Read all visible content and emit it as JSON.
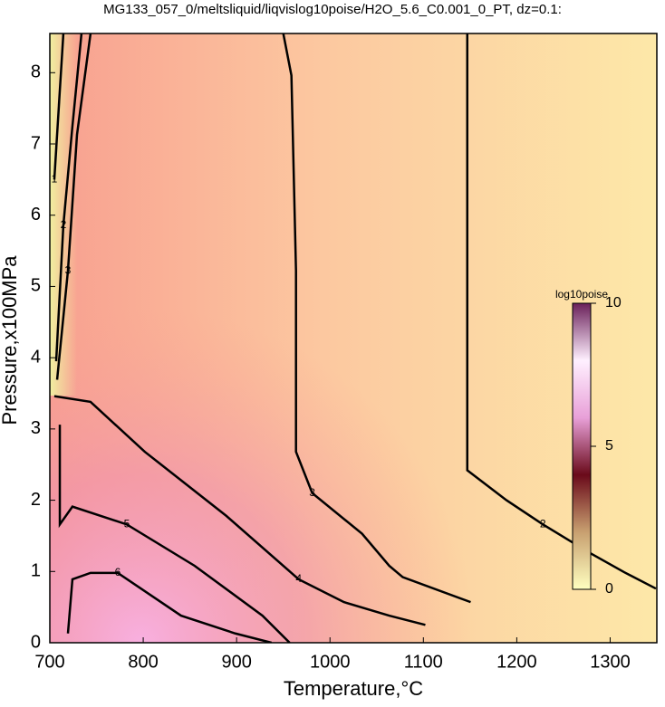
{
  "chart_data": {
    "type": "contour",
    "title": "MG133_057_0/meltsliquid/liqvislog10poise/H2O_5.6_C0.001_0_PT, dz=0.1:",
    "xlabel": "Temperature,°C",
    "ylabel": "Pressure,x100MPa",
    "xlim": [
      700,
      1350
    ],
    "xticks": [
      700,
      800,
      900,
      1000,
      1100,
      1200,
      1300
    ],
    "ylim": [
      0,
      8.55
    ],
    "yticks": [
      0,
      1,
      2,
      3,
      4,
      5,
      6,
      7,
      8
    ],
    "line_color": "#000000",
    "contours": [
      {
        "level": 1,
        "x": [
          714.5,
          704.8
        ],
        "y": [
          8.55,
          6.5
        ]
      },
      {
        "level": 2,
        "x": [
          733.9,
          724.2,
          714.5,
          706.8
        ],
        "y": [
          8.55,
          7.25,
          5.86,
          3.95
        ]
      },
      {
        "level": 3,
        "x": [
          743.6,
          729.1,
          719.4,
          707.8
        ],
        "y": [
          8.55,
          7.13,
          5.22,
          3.69
        ]
      },
      {
        "level": 2,
        "x": [
          1147,
          1147,
          1189,
          1228,
          1277,
          1315,
          1349
        ],
        "y": [
          8.55,
          2.42,
          2.0,
          1.66,
          1.27,
          0.99,
          0.76
        ]
      },
      {
        "level": 3,
        "x": [
          950,
          958.7,
          963.6,
          963.6,
          981,
          1034.3,
          1063.4,
          1077.9,
          1150.6
        ],
        "y": [
          8.55,
          7.96,
          5.22,
          2.68,
          2.1,
          1.53,
          1.08,
          0.92,
          0.57
        ]
      },
      {
        "level": 4,
        "x": [
          704.8,
          743.6,
          801.7,
          889,
          966.5,
          1014.9,
          1063.4,
          1102.1
        ],
        "y": [
          3.46,
          3.38,
          2.68,
          1.78,
          0.89,
          0.57,
          0.38,
          0.25
        ]
      },
      {
        "level": 5,
        "x": [
          710.7,
          710.7,
          724.2,
          782.4,
          855,
          927.7,
          956.8
        ],
        "y": [
          3.06,
          1.66,
          1.91,
          1.66,
          1.08,
          0.38,
          0
        ]
      },
      {
        "level": 6,
        "x": [
          719.4,
          724.2,
          743.6,
          772.7,
          840.5,
          898.6,
          937.4
        ],
        "y": [
          0.13,
          0.89,
          0.98,
          0.98,
          0.38,
          0.13,
          0
        ]
      }
    ],
    "colorbar": {
      "label": "log10poise",
      "lim": [
        0,
        10
      ],
      "ticks": [
        0,
        5,
        10
      ],
      "colors": [
        "#ffffc0",
        "#c8a070",
        "#6a0a1a",
        "#e8a0d8",
        "#fff0ff",
        "#6a205a"
      ]
    }
  }
}
